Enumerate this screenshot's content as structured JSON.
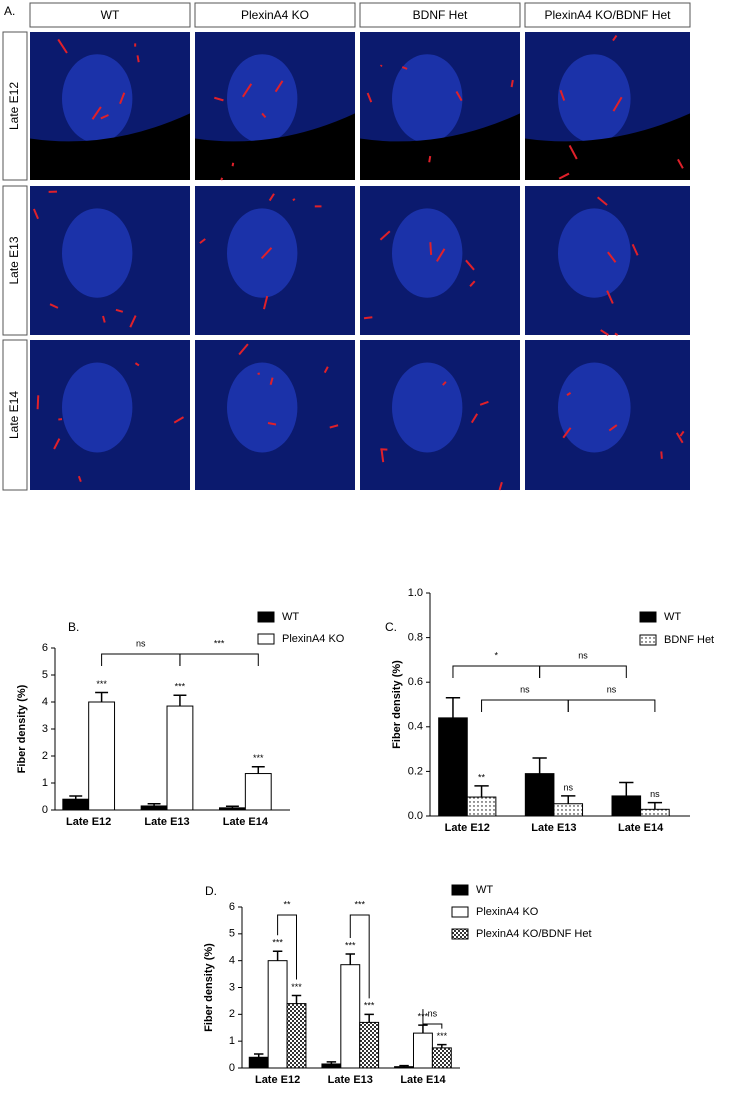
{
  "panel_a": {
    "panel_label": "A.",
    "column_headers": [
      "WT",
      "PlexinA4 KO",
      "BDNF Het",
      "PlexinA4 KO/BDNF Het"
    ],
    "row_labels": [
      "Late E12",
      "Late E13",
      "Late E14"
    ]
  },
  "chart_data": [
    {
      "type": "bar",
      "panel_label": "B.",
      "y_label": "Fiber density (%)",
      "categories": [
        "Late E12",
        "Late E13",
        "Late E14"
      ],
      "series": [
        {
          "name": "WT",
          "color": "#000000",
          "values": [
            0.4,
            0.15,
            0.08
          ],
          "errors": [
            0.12,
            0.08,
            0.06
          ]
        },
        {
          "name": "PlexinA4 KO",
          "color": "#ffffff",
          "values": [
            4.0,
            3.85,
            1.35
          ],
          "errors": [
            0.35,
            0.4,
            0.25
          ],
          "annotations": [
            "***",
            "***",
            "***"
          ]
        }
      ],
      "brackets": [
        "ns",
        "***"
      ],
      "ylim": [
        0,
        6
      ],
      "yticks": [
        0,
        1,
        2,
        3,
        4,
        5,
        6
      ]
    },
    {
      "type": "bar",
      "panel_label": "C.",
      "y_label": "Fiber density (%)",
      "categories": [
        "Late E12",
        "Late E13",
        "Late E14"
      ],
      "series": [
        {
          "name": "WT",
          "color": "#000000",
          "values": [
            0.44,
            0.19,
            0.09
          ],
          "errors": [
            0.09,
            0.07,
            0.06
          ]
        },
        {
          "name": "BDNF Het",
          "color": "#ffffff",
          "pattern": "dots",
          "values": [
            0.085,
            0.055,
            0.03
          ],
          "errors": [
            0.05,
            0.035,
            0.03
          ],
          "annotations": [
            "**",
            "ns",
            "ns"
          ]
        }
      ],
      "brackets": [
        "*",
        "ns",
        "ns",
        "ns"
      ],
      "ylim": [
        0,
        1
      ],
      "yticks": [
        {
          "value": 0,
          "label": "0.0"
        },
        0.2,
        0.4,
        0.6,
        0.8,
        {
          "value": 1,
          "label": "1.0"
        }
      ]
    },
    {
      "type": "bar",
      "panel_label": "D.",
      "y_label": "Fiber density (%)",
      "categories": [
        "Late E12",
        "Late E13",
        "Late E14"
      ],
      "series": [
        {
          "name": "WT",
          "color": "#000000",
          "values": [
            0.4,
            0.15,
            0.05
          ],
          "errors": [
            0.12,
            0.08,
            0.04
          ]
        },
        {
          "name": "PlexinA4 KO",
          "color": "#ffffff",
          "values": [
            4.0,
            3.85,
            1.3
          ],
          "errors": [
            0.35,
            0.4,
            0.3
          ],
          "annotations": [
            "***",
            "***",
            "***"
          ]
        },
        {
          "name": "PlexinA4 KO/BDNF Het",
          "color": "#ffffff",
          "pattern": "checker",
          "values": [
            2.4,
            1.7,
            0.75
          ],
          "errors": [
            0.3,
            0.3,
            0.12
          ],
          "annotations": [
            "***",
            "***",
            "***"
          ]
        }
      ],
      "brackets": [
        "**",
        "***",
        "ns"
      ],
      "ylim": [
        0,
        6
      ],
      "yticks": [
        0,
        1,
        2,
        3,
        4,
        5,
        6
      ]
    }
  ]
}
